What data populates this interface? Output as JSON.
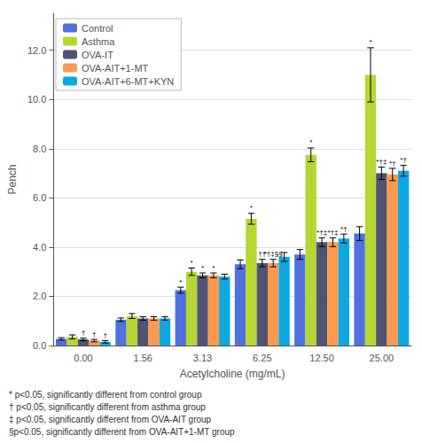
{
  "chart_data": {
    "type": "bar",
    "x_label": "Acetylcholine (mg/mL)",
    "y_label": "Pench",
    "categories": [
      "0.00",
      "1.56",
      "3.13",
      "6.25",
      "12.50",
      "25.00"
    ],
    "series": [
      {
        "name": "Control",
        "values": [
          0.27,
          1.05,
          2.25,
          3.3,
          3.7,
          4.55
        ],
        "errors": [
          0.05,
          0.07,
          0.12,
          0.18,
          0.2,
          0.28
        ]
      },
      {
        "name": "Asthma",
        "values": [
          0.35,
          1.2,
          3.0,
          5.15,
          7.75,
          11.0
        ],
        "errors": [
          0.08,
          0.1,
          0.15,
          0.22,
          0.28,
          1.1
        ]
      },
      {
        "name": "OVA-IT",
        "values": [
          0.25,
          1.1,
          2.85,
          3.35,
          4.2,
          7.0
        ],
        "errors": [
          0.05,
          0.07,
          0.1,
          0.15,
          0.18,
          0.25
        ]
      },
      {
        "name": "OVA-AIT+1-MT",
        "values": [
          0.2,
          1.1,
          2.85,
          3.35,
          4.2,
          6.95
        ],
        "errors": [
          0.05,
          0.07,
          0.1,
          0.15,
          0.18,
          0.25
        ]
      },
      {
        "name": "OVA-AIT+6-MT+KYN",
        "values": [
          0.15,
          1.1,
          2.8,
          3.6,
          4.35,
          7.1
        ],
        "errors": [
          0.05,
          0.07,
          0.1,
          0.18,
          0.18,
          0.22
        ]
      }
    ],
    "annotations": [
      {
        "category": "0.00",
        "series": "OVA-IT",
        "text": "†"
      },
      {
        "category": "0.00",
        "series": "OVA-AIT+1-MT",
        "text": "†"
      },
      {
        "category": "0.00",
        "series": "OVA-AIT+6-MT+KYN",
        "text": "†"
      },
      {
        "category": "3.13",
        "series": "Control",
        "text": "*"
      },
      {
        "category": "3.13",
        "series": "Asthma",
        "text": "*"
      },
      {
        "category": "3.13",
        "series": "OVA-IT",
        "text": "*"
      },
      {
        "category": "3.13",
        "series": "OVA-AIT+1-MT",
        "text": "*"
      },
      {
        "category": "6.25",
        "series": "Asthma",
        "text": "*"
      },
      {
        "category": "6.25",
        "series": "OVA-IT",
        "text": "††"
      },
      {
        "category": "6.25",
        "series": "OVA-AIT+1-MT",
        "text": "*†‡§§"
      },
      {
        "category": "12.50",
        "series": "Asthma",
        "text": "*"
      },
      {
        "category": "12.50",
        "series": "OVA-IT",
        "text": "*†‡"
      },
      {
        "category": "12.50",
        "series": "OVA-AIT+1-MT",
        "text": "*†‡"
      },
      {
        "category": "12.50",
        "series": "OVA-AIT+6-MT+KYN",
        "text": "*†"
      },
      {
        "category": "25.00",
        "series": "Asthma",
        "text": "*"
      },
      {
        "category": "25.00",
        "series": "OVA-IT",
        "text": "*†‡"
      },
      {
        "category": "25.00",
        "series": "OVA-AIT+1-MT",
        "text": "*†"
      },
      {
        "category": "25.00",
        "series": "OVA-AIT+6-MT+KYN",
        "text": "*†"
      }
    ],
    "footnotes": [
      "* p<0.05, significantly different from control group",
      "† p<0.05, significantly different from asthma group",
      "‡ p<0.05, significantly different from OVA-AIT group",
      "§p<0.05, significantly different from OVA-AIT+1-MT group"
    ],
    "ylim": [
      0,
      13.5
    ],
    "yticks": [
      {
        "value": 0.0,
        "label": "0.0"
      },
      {
        "value": 2.0,
        "label": "2.0"
      },
      {
        "value": 4.0,
        "label": "4.0"
      },
      {
        "value": 6.0,
        "label": "6.0"
      },
      {
        "value": 8.0,
        "label": "8.0"
      },
      {
        "value": 10.0,
        "label": "10.0"
      },
      {
        "value": 12.0,
        "label": "12.0"
      }
    ],
    "grid": true,
    "legend": "upper left"
  }
}
